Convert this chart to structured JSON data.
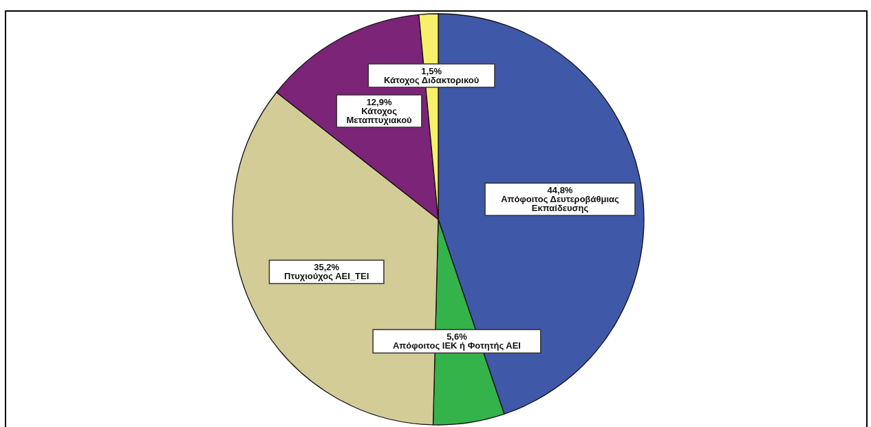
{
  "chart_data": {
    "type": "pie",
    "categories": [
      "Απόφοιτος Δευτεροβάθμιας\nΕκπαίδευσης",
      "Απόφοιτος ΙΕΚ ή Φοτητής ΑΕΙ",
      "Πτυχιούχος ΑΕΙ_ΤΕΙ",
      "Κάτοχος\nΜεταπτυχιακού",
      "Κάτοχος Διδακτορικού"
    ],
    "values": [
      44.8,
      5.6,
      35.2,
      12.9,
      1.5
    ],
    "value_labels": [
      "44,8%",
      "5,6%",
      "35,2%",
      "12,9%",
      "1,5%"
    ],
    "colors": [
      "#3f58a8",
      "#33b34a",
      "#d3cc96",
      "#7b2478",
      "#f8f06a"
    ]
  }
}
